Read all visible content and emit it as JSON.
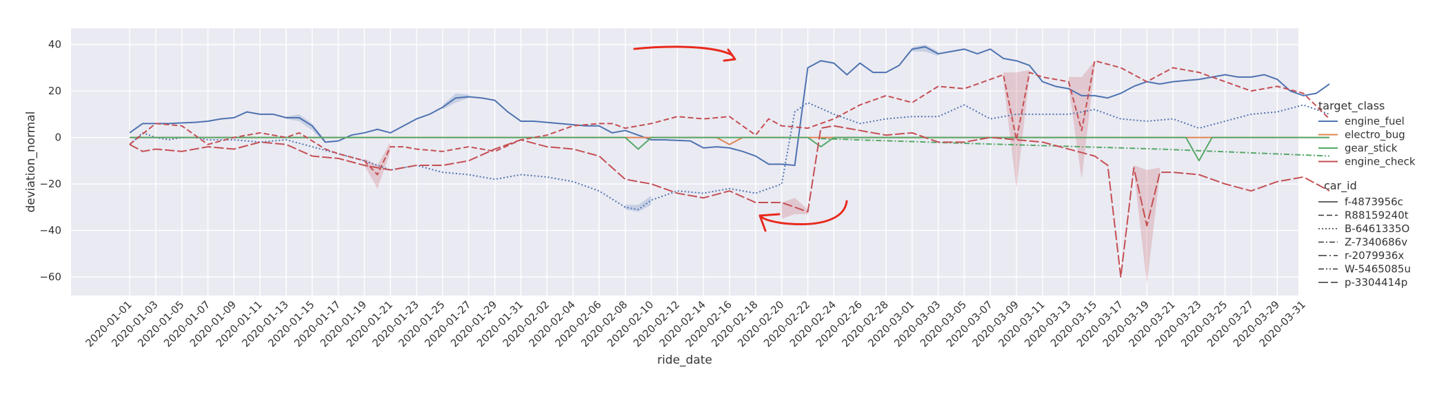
{
  "chart_data": {
    "type": "line",
    "title": "",
    "xlabel": "ride_date",
    "ylabel": "deviation_normal",
    "ylim": [
      -68,
      47
    ],
    "yticks": [
      -60,
      -40,
      -20,
      0,
      20,
      40
    ],
    "ytick_labels": [
      "−60",
      "−40",
      "−20",
      "0",
      "20",
      "40"
    ],
    "x_start": "2020-01-01",
    "x_end": "2020-04-02",
    "x_tick_labels": [
      "2020-01-01",
      "2020-01-03",
      "2020-01-05",
      "2020-01-07",
      "2020-01-09",
      "2020-01-11",
      "2020-01-13",
      "2020-01-15",
      "2020-01-17",
      "2020-01-19",
      "2020-01-21",
      "2020-01-23",
      "2020-01-25",
      "2020-01-27",
      "2020-01-29",
      "2020-01-31",
      "2020-02-02",
      "2020-02-04",
      "2020-02-06",
      "2020-02-08",
      "2020-02-10",
      "2020-02-12",
      "2020-02-14",
      "2020-02-16",
      "2020-02-18",
      "2020-02-20",
      "2020-02-22",
      "2020-02-24",
      "2020-02-26",
      "2020-02-28",
      "2020-03-01",
      "2020-03-03",
      "2020-03-05",
      "2020-03-07",
      "2020-03-09",
      "2020-03-11",
      "2020-03-13",
      "2020-03-15",
      "2020-03-17",
      "2020-03-19",
      "2020-03-21",
      "2020-03-23",
      "2020-03-25",
      "2020-03-27",
      "2020-03-29",
      "2020-03-31"
    ],
    "grid": true,
    "legend_position": "right",
    "hue_legend": {
      "title": "target_class",
      "items": [
        {
          "label": "engine_fuel",
          "color": "#4c72b0"
        },
        {
          "label": "electro_bug",
          "color": "#dd8452"
        },
        {
          "label": "gear_stick",
          "color": "#55a868"
        },
        {
          "label": "engine_check",
          "color": "#c44e52"
        }
      ]
    },
    "style_legend": {
      "title": "car_id",
      "items": [
        {
          "label": "f-4873956c",
          "dash": "solid"
        },
        {
          "label": "R88159240t",
          "dash": "dashed"
        },
        {
          "label": "B-6461335O",
          "dash": "dotted"
        },
        {
          "label": "Z-7340686v",
          "dash": "dashdot"
        },
        {
          "label": "r-2079936x",
          "dash": "longdashdot"
        },
        {
          "label": "W-5465085u",
          "dash": "dashdotdot"
        },
        {
          "label": "p-3304414p",
          "dash": "longdash"
        }
      ]
    },
    "series": [
      {
        "class": "engine_fuel",
        "car": "f-4873956c",
        "color": "#4c72b0",
        "dash": "solid",
        "x": [
          "2020-01-01",
          "2020-01-02",
          "2020-01-03",
          "2020-01-04",
          "2020-01-06",
          "2020-01-07",
          "2020-01-08",
          "2020-01-09",
          "2020-01-10",
          "2020-01-11",
          "2020-01-12",
          "2020-01-13",
          "2020-01-14",
          "2020-01-15",
          "2020-01-16",
          "2020-01-17",
          "2020-01-18",
          "2020-01-19",
          "2020-01-20",
          "2020-01-21",
          "2020-01-22",
          "2020-01-23",
          "2020-01-24",
          "2020-01-25",
          "2020-01-26",
          "2020-01-27",
          "2020-01-28",
          "2020-01-29",
          "2020-01-30",
          "2020-01-31",
          "2020-02-01",
          "2020-02-03",
          "2020-02-05",
          "2020-02-06",
          "2020-02-07",
          "2020-02-08",
          "2020-02-09",
          "2020-02-10",
          "2020-02-11",
          "2020-02-13",
          "2020-02-14",
          "2020-02-15",
          "2020-02-16",
          "2020-02-17",
          "2020-02-18",
          "2020-02-19",
          "2020-02-20",
          "2020-02-21",
          "2020-02-22",
          "2020-02-23",
          "2020-02-24",
          "2020-02-25",
          "2020-02-26",
          "2020-02-27",
          "2020-02-28",
          "2020-02-29",
          "2020-03-01",
          "2020-03-02",
          "2020-03-03",
          "2020-03-04",
          "2020-03-05",
          "2020-03-06",
          "2020-03-07",
          "2020-03-08",
          "2020-03-09",
          "2020-03-10",
          "2020-03-11",
          "2020-03-12",
          "2020-03-13",
          "2020-03-14",
          "2020-03-15",
          "2020-03-16",
          "2020-03-17",
          "2020-03-18",
          "2020-03-19",
          "2020-03-20",
          "2020-03-21",
          "2020-03-22",
          "2020-03-23",
          "2020-03-24",
          "2020-03-25",
          "2020-03-26",
          "2020-03-27",
          "2020-03-28",
          "2020-03-29",
          "2020-03-30",
          "2020-03-31",
          "2020-04-01",
          "2020-04-02"
        ],
        "y": [
          2,
          6,
          6,
          6,
          6.5,
          7,
          8,
          8.5,
          11,
          10,
          10,
          8.5,
          8.5,
          5,
          -2,
          -1.5,
          1,
          2,
          3.5,
          2,
          5,
          8,
          10,
          13,
          17,
          17.5,
          17,
          16,
          11,
          7,
          7,
          6,
          5,
          5,
          2,
          3,
          1,
          -1,
          -1,
          -1.5,
          -4.5,
          -4,
          -4.5,
          -6,
          -8,
          -11.5,
          -11.5,
          -12,
          30,
          33,
          32,
          27,
          32,
          28,
          28,
          31,
          38,
          39,
          36,
          37,
          38,
          36,
          38,
          34,
          33,
          31,
          24,
          22,
          21,
          18,
          18,
          17,
          19,
          22,
          24,
          23,
          24,
          24.5,
          25,
          26,
          27,
          26,
          26,
          27,
          25,
          20,
          18,
          19,
          23
        ]
      },
      {
        "class": "engine_fuel",
        "car": "B-6461335O",
        "color": "#4c72b0",
        "dash": "dotted",
        "x": [
          "2020-01-01",
          "2020-01-02",
          "2020-01-03",
          "2020-01-04",
          "2020-01-05",
          "2020-01-06",
          "2020-01-07",
          "2020-01-09",
          "2020-01-11",
          "2020-01-13",
          "2020-01-15",
          "2020-01-17",
          "2020-01-19",
          "2020-01-21",
          "2020-01-23",
          "2020-01-25",
          "2020-01-27",
          "2020-01-29",
          "2020-01-31",
          "2020-02-02",
          "2020-02-04",
          "2020-02-06",
          "2020-02-08",
          "2020-02-09",
          "2020-02-10",
          "2020-02-12",
          "2020-02-14",
          "2020-02-16",
          "2020-02-18",
          "2020-02-20",
          "2020-02-21",
          "2020-02-22",
          "2020-02-24",
          "2020-02-26",
          "2020-02-28",
          "2020-03-01",
          "2020-03-03",
          "2020-03-05",
          "2020-03-07",
          "2020-03-09",
          "2020-03-11",
          "2020-03-13",
          "2020-03-15",
          "2020-03-17",
          "2020-03-19",
          "2020-03-21",
          "2020-03-23",
          "2020-03-25",
          "2020-03-27",
          "2020-03-29",
          "2020-03-31",
          "2020-04-02"
        ],
        "y": [
          -3,
          2,
          0,
          -1,
          0,
          0,
          -1,
          -1,
          -2,
          -1,
          -4,
          -7,
          -10,
          -14,
          -12,
          -15,
          -16,
          -18,
          -16,
          -17,
          -19,
          -23,
          -30,
          -31,
          -27,
          -23,
          -24,
          -22,
          -24,
          -20,
          11,
          15,
          10,
          6,
          8,
          9,
          9,
          14,
          8,
          10,
          10,
          10,
          12,
          8,
          7,
          8,
          4,
          7,
          10,
          11,
          14,
          10
        ]
      },
      {
        "class": "electro_bug",
        "car": "R88159240t",
        "color": "#dd8452",
        "dash": "solid",
        "x": [
          "2020-01-01",
          "2020-01-05",
          "2020-01-20",
          "2020-02-01",
          "2020-02-15",
          "2020-02-16",
          "2020-02-17",
          "2020-03-01",
          "2020-03-15",
          "2020-04-02"
        ],
        "y": [
          0,
          0,
          0,
          0,
          0,
          -3,
          0,
          0,
          0,
          0
        ]
      },
      {
        "class": "gear_stick",
        "car": "Z-7340686v",
        "color": "#55a868",
        "dash": "solid",
        "x": [
          "2020-01-01",
          "2020-02-08",
          "2020-02-09",
          "2020-02-10",
          "2020-02-22",
          "2020-02-23",
          "2020-02-24",
          "2020-03-22",
          "2020-03-23",
          "2020-03-24",
          "2020-04-02"
        ],
        "y": [
          0,
          0,
          -5,
          0,
          0,
          -4,
          0,
          0,
          -10,
          0,
          0
        ]
      },
      {
        "class": "gear_stick",
        "car": "r-2079936x",
        "color": "#55a868",
        "dash": "dashdot",
        "x": [
          "2020-02-23",
          "2020-03-05",
          "2020-03-20",
          "2020-04-02"
        ],
        "y": [
          -0.5,
          -2.5,
          -5,
          -8
        ]
      },
      {
        "class": "engine_check",
        "car": "W-5465085u",
        "color": "#c44e52",
        "dash": "dashed",
        "x": [
          "2020-01-01",
          "2020-01-03",
          "2020-01-05",
          "2020-01-07",
          "2020-01-09",
          "2020-01-11",
          "2020-01-13",
          "2020-01-14",
          "2020-01-16",
          "2020-01-17",
          "2020-01-19",
          "2020-01-20",
          "2020-01-21",
          "2020-01-22",
          "2020-01-23",
          "2020-01-25",
          "2020-01-27",
          "2020-01-29",
          "2020-01-31",
          "2020-02-02",
          "2020-02-04",
          "2020-02-06",
          "2020-02-07",
          "2020-02-08",
          "2020-02-10",
          "2020-02-12",
          "2020-02-14",
          "2020-02-16",
          "2020-02-17",
          "2020-02-18",
          "2020-02-19",
          "2020-02-20",
          "2020-02-22",
          "2020-02-24",
          "2020-02-26",
          "2020-02-28",
          "2020-03-01",
          "2020-03-03",
          "2020-03-05",
          "2020-03-07",
          "2020-03-08",
          "2020-03-09",
          "2020-03-10",
          "2020-03-11",
          "2020-03-13",
          "2020-03-14",
          "2020-03-15",
          "2020-03-17",
          "2020-03-19",
          "2020-03-21",
          "2020-03-23",
          "2020-03-25",
          "2020-03-27",
          "2020-03-29",
          "2020-03-31",
          "2020-04-02"
        ],
        "y": [
          -3,
          6,
          5,
          -3,
          0,
          2,
          0,
          2,
          -5,
          -7,
          -10,
          -16,
          -4,
          -4,
          -5,
          -6,
          -4,
          -6,
          -1,
          1,
          5,
          6,
          6,
          4,
          6,
          9,
          8,
          9,
          5,
          1,
          8,
          5,
          4,
          8,
          14,
          18,
          15,
          22,
          21,
          25,
          27,
          -1,
          28,
          26,
          24,
          3,
          33,
          30,
          24,
          30,
          28,
          24,
          20,
          22,
          19,
          8
        ]
      },
      {
        "class": "engine_check",
        "car": "p-3304414p",
        "color": "#c44e52",
        "dash": "longdash",
        "x": [
          "2020-01-01",
          "2020-01-02",
          "2020-01-03",
          "2020-01-05",
          "2020-01-07",
          "2020-01-09",
          "2020-01-11",
          "2020-01-13",
          "2020-01-15",
          "2020-01-17",
          "2020-01-19",
          "2020-01-21",
          "2020-01-23",
          "2020-01-25",
          "2020-01-27",
          "2020-01-29",
          "2020-01-31",
          "2020-02-02",
          "2020-02-04",
          "2020-02-06",
          "2020-02-08",
          "2020-02-10",
          "2020-02-12",
          "2020-02-14",
          "2020-02-16",
          "2020-02-18",
          "2020-02-20",
          "2020-02-21",
          "2020-02-22",
          "2020-02-23",
          "2020-02-24",
          "2020-02-26",
          "2020-02-28",
          "2020-03-01",
          "2020-03-03",
          "2020-03-05",
          "2020-03-07",
          "2020-03-09",
          "2020-03-11",
          "2020-03-13",
          "2020-03-15",
          "2020-03-16",
          "2020-03-17",
          "2020-03-18",
          "2020-03-19",
          "2020-03-20",
          "2020-03-21",
          "2020-03-23",
          "2020-03-25",
          "2020-03-27",
          "2020-03-29",
          "2020-03-31",
          "2020-04-02"
        ],
        "y": [
          -3,
          -6,
          -5,
          -6,
          -4,
          -5,
          -2,
          -3,
          -8,
          -9,
          -12,
          -14,
          -12,
          -12,
          -10,
          -5,
          -1,
          -4,
          -5,
          -8,
          -18,
          -20,
          -24,
          -26,
          -23,
          -28,
          -28,
          -30,
          -32,
          4,
          5,
          3,
          1,
          2,
          -2,
          -2,
          0,
          -1,
          -2,
          -5,
          -8,
          -12,
          -60,
          -13,
          -38,
          -15,
          -15,
          -16,
          -20,
          -23,
          -19,
          -17,
          -23
        ]
      }
    ],
    "bands": [
      {
        "color": "#4c72b0",
        "x": [
          "2020-01-13",
          "2020-01-14",
          "2020-01-15",
          "2020-01-16"
        ],
        "lo": [
          8,
          7,
          3,
          -2
        ],
        "hi": [
          9,
          10,
          6,
          -1
        ]
      },
      {
        "color": "#4c72b0",
        "x": [
          "2020-01-25",
          "2020-01-26",
          "2020-01-27"
        ],
        "lo": [
          12,
          15,
          17
        ],
        "hi": [
          14,
          19,
          18.5
        ]
      },
      {
        "color": "#4c72b0",
        "x": [
          "2020-02-08",
          "2020-02-09",
          "2020-02-10"
        ],
        "lo": [
          -31,
          -32,
          -29
        ],
        "hi": [
          -29,
          -29,
          -25
        ]
      },
      {
        "color": "#4c72b0",
        "x": [
          "2020-03-01",
          "2020-03-02",
          "2020-03-03"
        ],
        "lo": [
          37,
          37,
          35
        ],
        "hi": [
          39,
          40,
          37
        ]
      },
      {
        "color": "#c44e52",
        "x": [
          "2020-03-08",
          "2020-03-09",
          "2020-03-10"
        ],
        "lo": [
          24,
          -22,
          26
        ],
        "hi": [
          28,
          28,
          29
        ]
      },
      {
        "color": "#c44e52",
        "x": [
          "2020-03-13",
          "2020-03-14",
          "2020-03-15"
        ],
        "lo": [
          22,
          -18,
          30
        ],
        "hi": [
          26,
          26,
          33
        ]
      },
      {
        "color": "#c44e52",
        "x": [
          "2020-03-17",
          "2020-03-18",
          "2020-03-19",
          "2020-03-20"
        ],
        "lo": [
          -60,
          -14,
          -63,
          -16
        ],
        "hi": [
          -58,
          -12,
          -14,
          -13
        ]
      },
      {
        "color": "#c44e52",
        "x": [
          "2020-02-20",
          "2020-02-21",
          "2020-02-22"
        ],
        "lo": [
          -35,
          -33,
          -33
        ],
        "hi": [
          -28,
          -26,
          -31
        ]
      },
      {
        "color": "#c44e52",
        "x": [
          "2020-01-19",
          "2020-01-20",
          "2020-01-21"
        ],
        "lo": [
          -12,
          -22,
          -6
        ],
        "hi": [
          -9,
          -12,
          -2
        ]
      }
    ]
  }
}
